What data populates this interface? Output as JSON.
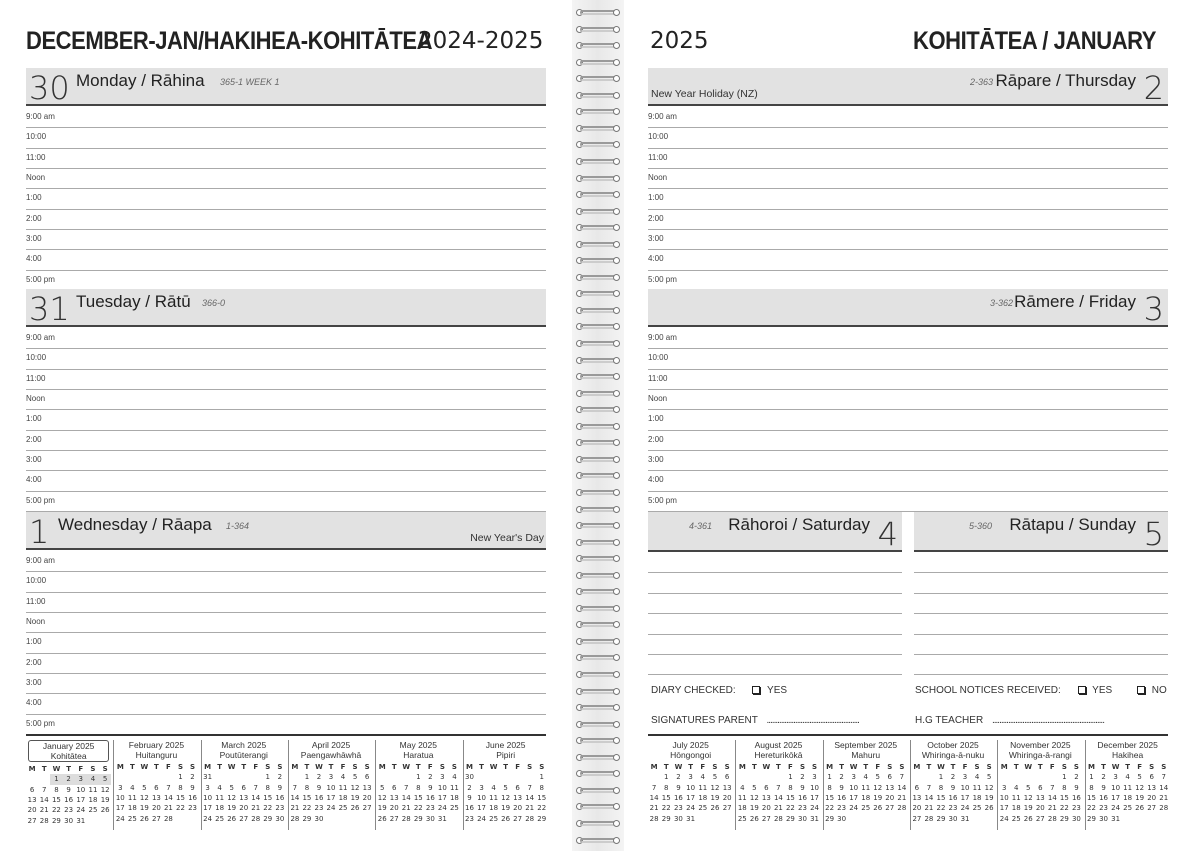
{
  "left_page": {
    "title": "DECEMBER-JAN/HAKIHEA-KOHITĀTEA",
    "year": "2024-2025"
  },
  "right_page": {
    "year": "2025",
    "title": "KOHITĀTEA / JANUARY"
  },
  "times": [
    "9:00 am",
    "10:00",
    "11:00",
    "Noon",
    "1:00",
    "2:00",
    "3:00",
    "4:00",
    "5:00 pm"
  ],
  "days": [
    {
      "num": "30",
      "name": "Monday / Rāhina",
      "code": "365-1  WEEK 1",
      "note": ""
    },
    {
      "num": "31",
      "name": "Tuesday / Rātū",
      "code": "366-0",
      "note": ""
    },
    {
      "num": "1",
      "name": "Wednesday / Rāapa",
      "code": "1-364",
      "note": "New Year's Day"
    },
    {
      "num": "2",
      "name": "Rāpare / Thursday",
      "code": "2-363",
      "note": "New Year Holiday (NZ)"
    },
    {
      "num": "3",
      "name": "Rāmere / Friday",
      "code": "3-362",
      "note": ""
    },
    {
      "num": "4",
      "name": "Rāhoroi / Saturday",
      "code": "4-361",
      "note": ""
    },
    {
      "num": "5",
      "name": "Rātapu / Sunday",
      "code": "5-360",
      "note": ""
    }
  ],
  "form": {
    "diary_checked": "DIARY CHECKED:",
    "yes": "YES",
    "no": "NO",
    "school_notices": "SCHOOL NOTICES RECEIVED:",
    "signatures_parent": "SIGNATURES PARENT",
    "parent_dots": "....................................................",
    "hg_teacher": "H.G TEACHER",
    "teacher_dots": "..............................................................."
  },
  "weekday_header": [
    "M",
    "T",
    "W",
    "T",
    "F",
    "S",
    "S"
  ],
  "calendars": [
    {
      "title": "January 2025",
      "maori": "Kohitātea",
      "current": true,
      "highlight": [
        "1",
        "2",
        "3",
        "4",
        "5"
      ],
      "weeks": [
        [
          "",
          "",
          "1",
          "2",
          "3",
          "4",
          "5"
        ],
        [
          "6",
          "7",
          "8",
          "9",
          "10",
          "11",
          "12"
        ],
        [
          "13",
          "14",
          "15",
          "16",
          "17",
          "18",
          "19"
        ],
        [
          "20",
          "21",
          "22",
          "23",
          "24",
          "25",
          "26"
        ],
        [
          "27",
          "28",
          "29",
          "30",
          "31",
          "",
          ""
        ]
      ]
    },
    {
      "title": "February 2025",
      "maori": "Huitanguru",
      "weeks": [
        [
          "",
          "",
          "",
          "",
          "",
          "1",
          "2"
        ],
        [
          "3",
          "4",
          "5",
          "6",
          "7",
          "8",
          "9"
        ],
        [
          "10",
          "11",
          "12",
          "13",
          "14",
          "15",
          "16"
        ],
        [
          "17",
          "18",
          "19",
          "20",
          "21",
          "22",
          "23"
        ],
        [
          "24",
          "25",
          "26",
          "27",
          "28",
          "",
          ""
        ]
      ]
    },
    {
      "title": "March 2025",
      "maori": "Poutūterangi",
      "weeks": [
        [
          "31",
          "",
          "",
          "",
          "",
          "1",
          "2"
        ],
        [
          "3",
          "4",
          "5",
          "6",
          "7",
          "8",
          "9"
        ],
        [
          "10",
          "11",
          "12",
          "13",
          "14",
          "15",
          "16"
        ],
        [
          "17",
          "18",
          "19",
          "20",
          "21",
          "22",
          "23"
        ],
        [
          "24",
          "25",
          "26",
          "27",
          "28",
          "29",
          "30"
        ]
      ]
    },
    {
      "title": "April 2025",
      "maori": "Paengawhāwhā",
      "weeks": [
        [
          "",
          "1",
          "2",
          "3",
          "4",
          "5",
          "6"
        ],
        [
          "7",
          "8",
          "9",
          "10",
          "11",
          "12",
          "13"
        ],
        [
          "14",
          "15",
          "16",
          "17",
          "18",
          "19",
          "20"
        ],
        [
          "21",
          "22",
          "23",
          "24",
          "25",
          "26",
          "27"
        ],
        [
          "28",
          "29",
          "30",
          "",
          "",
          "",
          ""
        ]
      ]
    },
    {
      "title": "May 2025",
      "maori": "Haratua",
      "weeks": [
        [
          "",
          "",
          "",
          "1",
          "2",
          "3",
          "4"
        ],
        [
          "5",
          "6",
          "7",
          "8",
          "9",
          "10",
          "11"
        ],
        [
          "12",
          "13",
          "14",
          "15",
          "16",
          "17",
          "18"
        ],
        [
          "19",
          "20",
          "21",
          "22",
          "23",
          "24",
          "25"
        ],
        [
          "26",
          "27",
          "28",
          "29",
          "30",
          "31",
          ""
        ]
      ]
    },
    {
      "title": "June 2025",
      "maori": "Pipiri",
      "weeks": [
        [
          "30",
          "",
          "",
          "",
          "",
          "",
          "1"
        ],
        [
          "2",
          "3",
          "4",
          "5",
          "6",
          "7",
          "8"
        ],
        [
          "9",
          "10",
          "11",
          "12",
          "13",
          "14",
          "15"
        ],
        [
          "16",
          "17",
          "18",
          "19",
          "20",
          "21",
          "22"
        ],
        [
          "23",
          "24",
          "25",
          "26",
          "27",
          "28",
          "29"
        ]
      ]
    },
    {
      "title": "July 2025",
      "maori": "Hōngongoi",
      "weeks": [
        [
          "",
          "1",
          "2",
          "3",
          "4",
          "5",
          "6"
        ],
        [
          "7",
          "8",
          "9",
          "10",
          "11",
          "12",
          "13"
        ],
        [
          "14",
          "15",
          "16",
          "17",
          "18",
          "19",
          "20"
        ],
        [
          "21",
          "22",
          "23",
          "24",
          "25",
          "26",
          "27"
        ],
        [
          "28",
          "29",
          "30",
          "31",
          "",
          "",
          ""
        ]
      ]
    },
    {
      "title": "August 2025",
      "maori": "Hereturikōkā",
      "weeks": [
        [
          "",
          "",
          "",
          "",
          "1",
          "2",
          "3"
        ],
        [
          "4",
          "5",
          "6",
          "7",
          "8",
          "9",
          "10"
        ],
        [
          "11",
          "12",
          "13",
          "14",
          "15",
          "16",
          "17"
        ],
        [
          "18",
          "19",
          "20",
          "21",
          "22",
          "23",
          "24"
        ],
        [
          "25",
          "26",
          "27",
          "28",
          "29",
          "30",
          "31"
        ]
      ]
    },
    {
      "title": "September 2025",
      "maori": "Mahuru",
      "weeks": [
        [
          "1",
          "2",
          "3",
          "4",
          "5",
          "6",
          "7"
        ],
        [
          "8",
          "9",
          "10",
          "11",
          "12",
          "13",
          "14"
        ],
        [
          "15",
          "16",
          "17",
          "18",
          "19",
          "20",
          "21"
        ],
        [
          "22",
          "23",
          "24",
          "25",
          "26",
          "27",
          "28"
        ],
        [
          "29",
          "30",
          "",
          "",
          "",
          "",
          ""
        ]
      ]
    },
    {
      "title": "October 2025",
      "maori": "Whiringa-ā-nuku",
      "weeks": [
        [
          "",
          "",
          "1",
          "2",
          "3",
          "4",
          "5"
        ],
        [
          "6",
          "7",
          "8",
          "9",
          "10",
          "11",
          "12"
        ],
        [
          "13",
          "14",
          "15",
          "16",
          "17",
          "18",
          "19"
        ],
        [
          "20",
          "21",
          "22",
          "23",
          "24",
          "25",
          "26"
        ],
        [
          "27",
          "28",
          "29",
          "30",
          "31",
          "",
          ""
        ]
      ]
    },
    {
      "title": "November 2025",
      "maori": "Whiringa-ā-rangi",
      "weeks": [
        [
          "",
          "",
          "",
          "",
          "",
          "1",
          "2"
        ],
        [
          "3",
          "4",
          "5",
          "6",
          "7",
          "8",
          "9"
        ],
        [
          "10",
          "11",
          "12",
          "13",
          "14",
          "15",
          "16"
        ],
        [
          "17",
          "18",
          "19",
          "20",
          "21",
          "22",
          "23"
        ],
        [
          "24",
          "25",
          "26",
          "27",
          "28",
          "29",
          "30"
        ]
      ]
    },
    {
      "title": "December 2025",
      "maori": "Hakihea",
      "weeks": [
        [
          "1",
          "2",
          "3",
          "4",
          "5",
          "6",
          "7"
        ],
        [
          "8",
          "9",
          "10",
          "11",
          "12",
          "13",
          "14"
        ],
        [
          "15",
          "16",
          "17",
          "18",
          "19",
          "20",
          "21"
        ],
        [
          "22",
          "23",
          "24",
          "25",
          "26",
          "27",
          "28"
        ],
        [
          "29",
          "30",
          "31",
          "",
          "",
          "",
          ""
        ]
      ]
    }
  ]
}
